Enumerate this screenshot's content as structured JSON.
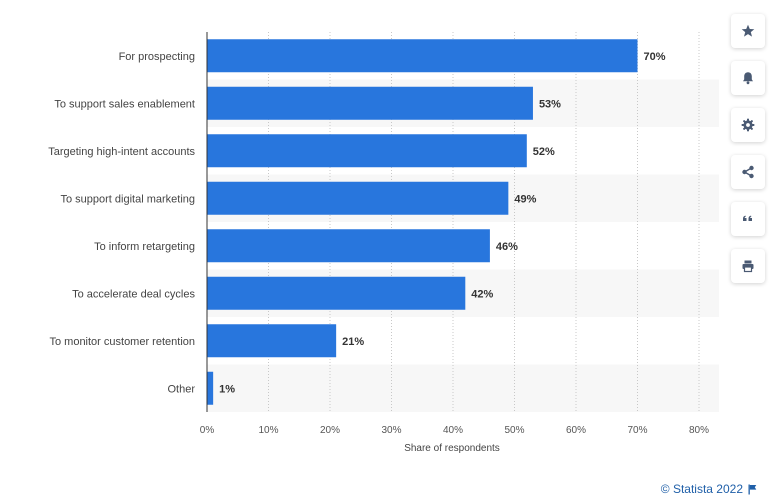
{
  "chart_data": {
    "type": "bar",
    "orientation": "horizontal",
    "categories": [
      "For prospecting",
      "To support sales enablement",
      "Targeting high-intent accounts",
      "To support digital marketing",
      "To inform retargeting",
      "To accelerate deal cycles",
      "To monitor customer retention",
      "Other"
    ],
    "values": [
      70,
      53,
      52,
      49,
      46,
      42,
      21,
      1
    ],
    "value_labels": [
      "70%",
      "53%",
      "52%",
      "49%",
      "46%",
      "42%",
      "21%",
      "1%"
    ],
    "xlabel": "Share of respondents",
    "xlim": [
      0,
      80
    ],
    "xticks": [
      "0%",
      "10%",
      "20%",
      "30%",
      "40%",
      "50%",
      "60%",
      "70%",
      "80%"
    ],
    "grid": "vertical dotted",
    "bar_color": "#2876dd",
    "stripe_color": "#f7f7f7"
  },
  "toolbar": {
    "buttons": [
      {
        "name": "favorite-button",
        "icon": "star-icon"
      },
      {
        "name": "notification-button",
        "icon": "bell-icon"
      },
      {
        "name": "settings-button",
        "icon": "gear-icon"
      },
      {
        "name": "share-button",
        "icon": "share-icon"
      },
      {
        "name": "cite-button",
        "icon": "quote-icon"
      },
      {
        "name": "print-button",
        "icon": "printer-icon"
      }
    ],
    "icon_color": "#4a5a73"
  },
  "credit": {
    "text": "© Statista 2022",
    "icon": "flag-icon"
  }
}
